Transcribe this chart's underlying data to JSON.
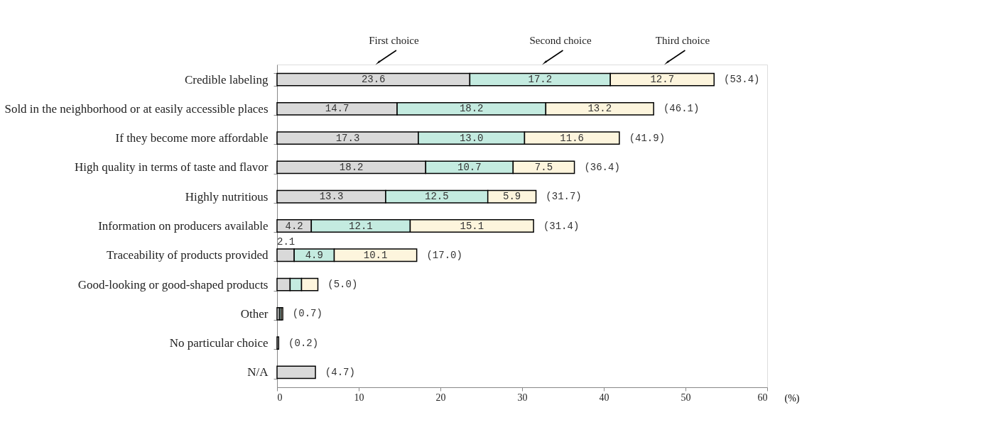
{
  "chart_data": {
    "type": "bar",
    "orientation": "horizontal",
    "stacked": true,
    "xlabel": "(%)",
    "categories": [
      "Credible labeling",
      "Sold in the neighborhood or at easily accessible places",
      "If they become more affordable",
      "High quality in terms of taste and flavor",
      "Highly nutritious",
      "Information on producers available",
      "Traceability of products provided",
      "Good-looking or good-shaped products",
      "Other",
      "No particular choice",
      "N/A"
    ],
    "series": [
      {
        "name": "First choice",
        "color": "#d9d9d9",
        "values": [
          23.6,
          14.7,
          17.3,
          18.2,
          13.3,
          4.2,
          2.1,
          1.6,
          0.3,
          0.2,
          4.7
        ],
        "value_labels": [
          "23.6",
          "14.7",
          "17.3",
          "18.2",
          "13.3",
          "4.2",
          "2.1",
          null,
          null,
          null,
          null
        ]
      },
      {
        "name": "Second choice",
        "color": "#c4ebe0",
        "values": [
          17.2,
          18.2,
          13.0,
          10.7,
          12.5,
          12.1,
          4.9,
          1.4,
          0.2,
          null,
          null
        ],
        "value_labels": [
          "17.2",
          "18.2",
          "13.0",
          "10.7",
          "12.5",
          "12.1",
          "4.9",
          null,
          null,
          null,
          null
        ]
      },
      {
        "name": "Third choice",
        "color": "#fdf5dd",
        "values": [
          12.7,
          13.2,
          11.6,
          7.5,
          5.9,
          15.1,
          10.1,
          2.0,
          0.2,
          null,
          null
        ],
        "value_labels": [
          "12.7",
          "13.2",
          "11.6",
          "7.5",
          "5.9",
          "15.1",
          "10.1",
          null,
          null,
          null,
          null
        ]
      }
    ],
    "totals": [
      "(53.4)",
      "(46.1)",
      "(41.9)",
      "(36.4)",
      "(31.7)",
      "(31.4)",
      "(17.0)",
      "(5.0)",
      "(0.7)",
      "(0.2)",
      "(4.7)"
    ],
    "xlim": [
      0,
      60
    ],
    "xticks": [
      0,
      10,
      20,
      30,
      40,
      50,
      60
    ],
    "grid": false,
    "legend": false
  }
}
